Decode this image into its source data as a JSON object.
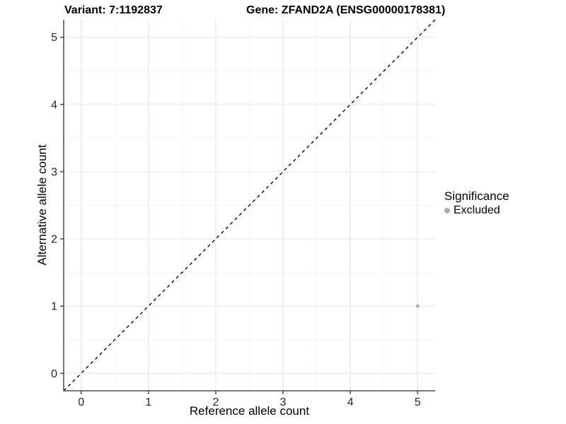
{
  "header": {
    "variant_title": "Variant: 7:1192837",
    "gene_title": "Gene: ZFAND2A (ENSG00000178381)"
  },
  "legend": {
    "title": "Significance",
    "items": [
      {
        "label": "Excluded",
        "color": "#b0b0b0"
      }
    ]
  },
  "chart_data": {
    "type": "scatter",
    "title": "Variant: 7:1192837 | Gene: ZFAND2A (ENSG00000178381)",
    "xlabel": "Reference allele count",
    "ylabel": "Alternative allele count",
    "xlim": [
      -0.26,
      5.26
    ],
    "ylim": [
      -0.26,
      5.26
    ],
    "x_ticks": [
      0,
      1,
      2,
      3,
      4,
      5
    ],
    "y_ticks": [
      0,
      1,
      2,
      3,
      4,
      5
    ],
    "x_minor": [
      0.5,
      1.5,
      2.5,
      3.5,
      4.5
    ],
    "y_minor": [
      0.5,
      1.5,
      2.5,
      3.5,
      4.5
    ],
    "grid": true,
    "legend_position": "right",
    "reference_line": {
      "type": "identity y=x",
      "style": "dashed",
      "color": "#000000"
    },
    "series": [
      {
        "name": "Excluded",
        "points": [
          {
            "x": 5,
            "y": 1
          }
        ]
      }
    ]
  },
  "colors": {
    "background": "#ffffff",
    "point": "#b0b0b0",
    "grid_major": "#e7e7e7",
    "grid_minor": "#f4f4f4",
    "axis_line": "#4d4d4d",
    "tick_mark": "#333333",
    "tick_text": "#262626",
    "dashed_line": "#000000"
  }
}
